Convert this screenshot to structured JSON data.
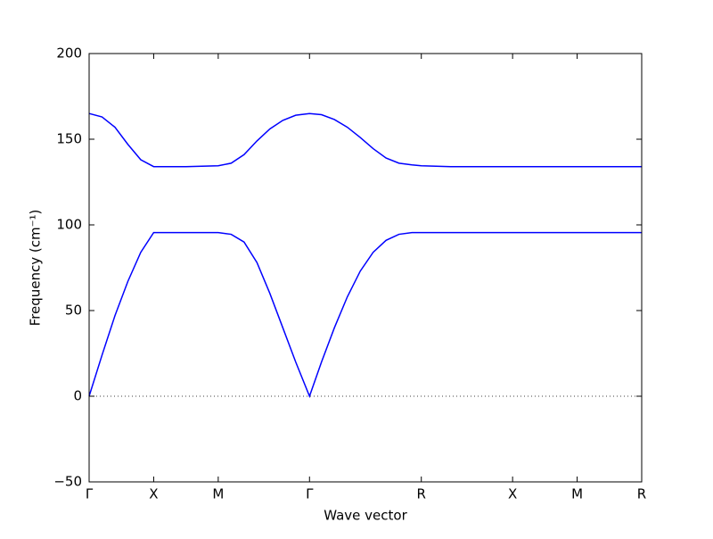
{
  "chart_data": {
    "type": "line",
    "x": [
      0,
      0.1,
      0.2,
      0.3,
      0.4,
      0.5,
      0.75,
      1.0,
      1.1,
      1.2,
      1.3,
      1.4,
      1.5,
      1.6,
      1.707,
      1.8,
      1.9,
      2.0,
      2.1,
      2.2,
      2.3,
      2.4,
      2.5,
      2.573,
      2.8,
      3.28,
      3.78,
      4.28
    ],
    "series": [
      {
        "color": "#0000ff",
        "values": [
          0,
          24,
          47,
          67,
          84,
          95.5,
          95.5,
          95.5,
          94.5,
          90,
          78,
          60,
          40,
          20,
          0,
          20,
          40,
          58,
          73,
          84,
          91,
          94.5,
          95.5,
          95.5,
          95.5,
          95.5,
          95.5,
          95.5
        ]
      },
      {
        "color": "#0000ff",
        "values": [
          165,
          163,
          157,
          147,
          138,
          134,
          134,
          134.5,
          136,
          141,
          149,
          156,
          161,
          164,
          165,
          164.3,
          161.5,
          157,
          151,
          144.5,
          139,
          136,
          135,
          134.5,
          134,
          134,
          134,
          134
        ]
      }
    ],
    "xlabel": "Wave vector",
    "ylabel": "Frequency (cm⁻¹)",
    "xlim": [
      0,
      4.28
    ],
    "ylim": [
      -50,
      200
    ],
    "xticks": [
      {
        "value": 0,
        "label": "Γ"
      },
      {
        "value": 0.5,
        "label": "X"
      },
      {
        "value": 1.0,
        "label": "M"
      },
      {
        "value": 1.707,
        "label": "Γ"
      },
      {
        "value": 2.573,
        "label": "R"
      },
      {
        "value": 3.28,
        "label": "X"
      },
      {
        "value": 3.78,
        "label": "M"
      },
      {
        "value": 4.28,
        "label": "R"
      }
    ],
    "yticks": [
      {
        "value": -50,
        "label": "−50"
      },
      0,
      50,
      100,
      150,
      200
    ],
    "zero_line": true
  }
}
